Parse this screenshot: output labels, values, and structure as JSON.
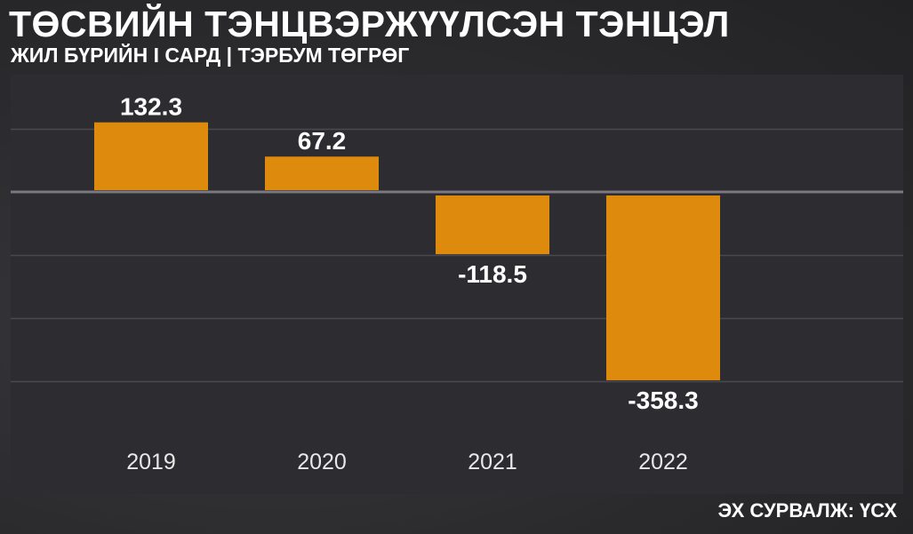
{
  "header": {
    "title": "ТӨСВИЙН ТЭНЦВЭРЖҮҮЛСЭН ТЭНЦЭЛ",
    "subtitle": "ЖИЛ БҮРИЙН I САРД | ТЭРБУМ ТӨГРӨГ"
  },
  "footer": {
    "source": "ЭХ СУРВАЛЖ: ҮСХ"
  },
  "colors": {
    "bar": "#de8a0c",
    "grid": "#4a4950",
    "zero_line": "#7a7980",
    "panel": "#2d2c31"
  },
  "chart_data": {
    "type": "bar",
    "categories": [
      "2019",
      "2020",
      "2021",
      "2022"
    ],
    "values": [
      132.3,
      67.2,
      -118.5,
      -358.3
    ],
    "value_labels": [
      "132.3",
      "67.2",
      "-118.5",
      "-358.3"
    ],
    "title": "ТӨСВИЙН ТЭНЦВЭРЖҮҮЛСЭН ТЭНЦЭЛ",
    "subtitle": "ЖИЛ БҮРИЙН I САРД | ТЭРБУМ ТӨГРӨГ",
    "xlabel": "",
    "ylabel": "",
    "ylim": [
      -360,
      140
    ],
    "gridlines": [
      120,
      0,
      -120,
      -240,
      -360
    ],
    "grid": true,
    "legend": "none"
  }
}
